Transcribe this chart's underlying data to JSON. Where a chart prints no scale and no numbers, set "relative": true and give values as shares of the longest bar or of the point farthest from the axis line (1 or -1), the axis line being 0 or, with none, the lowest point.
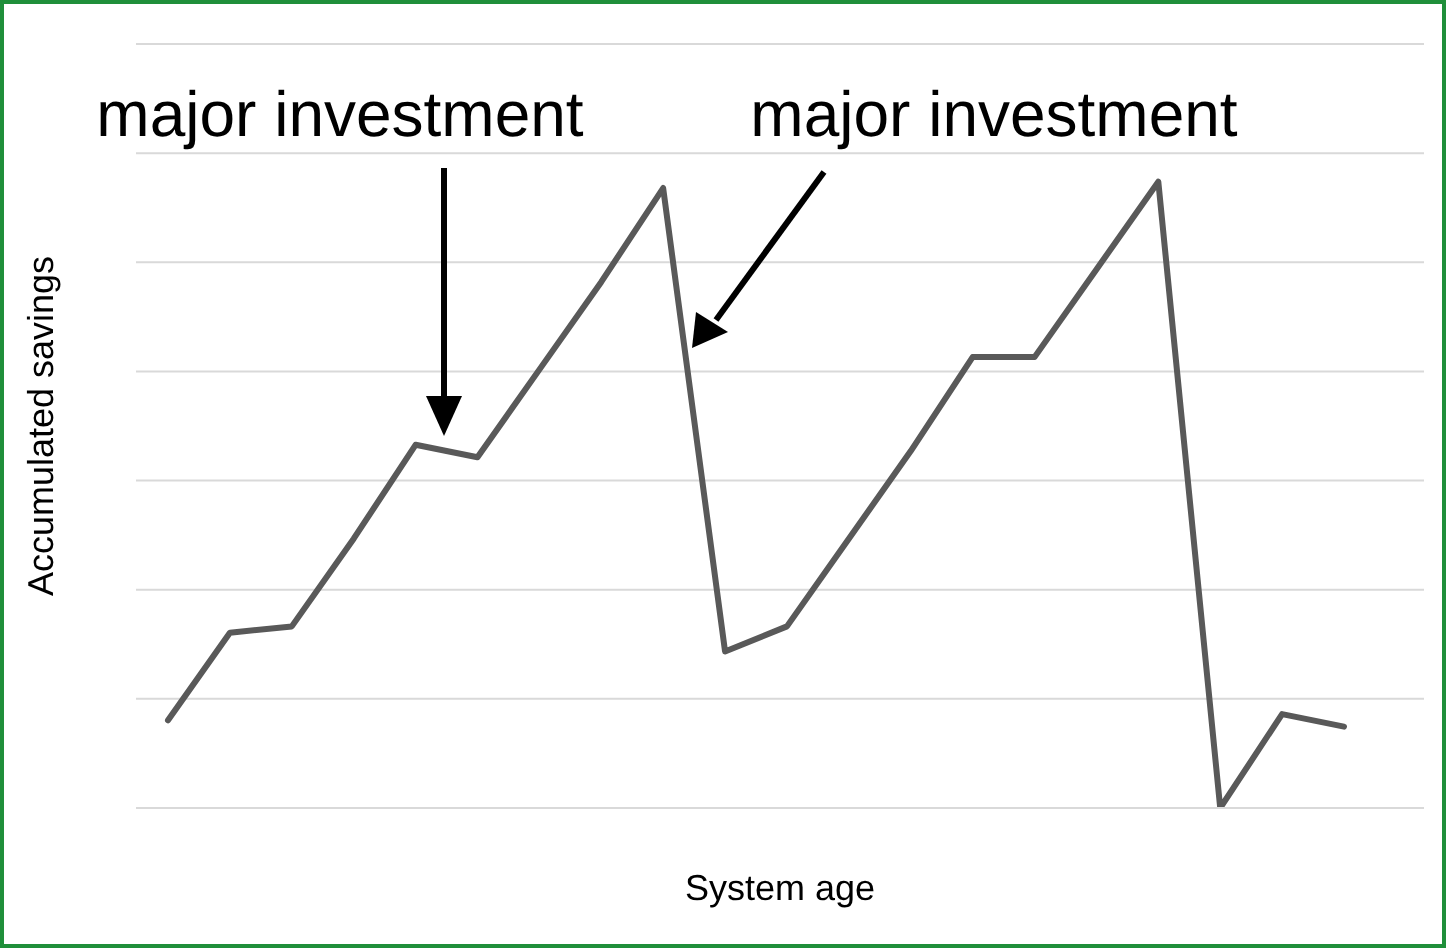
{
  "chart_data": {
    "type": "line",
    "relative": true,
    "xlabel": "System age",
    "ylabel": "Accumulated savings",
    "annotations": [
      "major investment",
      "major investment"
    ],
    "grid": "y",
    "marker": "none",
    "line_style": "solid",
    "categories": [
      null,
      null,
      null,
      null,
      null,
      null,
      null,
      null,
      null,
      null,
      null,
      null,
      null,
      null,
      null,
      null,
      null,
      null,
      null,
      null
    ],
    "series": [
      {
        "color": "#595959",
        "values": [
          0.14,
          0.28,
          0.29,
          0.43,
          0.58,
          0.56,
          0.7,
          0.84,
          0.99,
          0.25,
          0.29,
          0.43,
          0.57,
          0.72,
          0.72,
          0.86,
          1,
          0,
          0.15,
          0.13
        ]
      }
    ]
  }
}
